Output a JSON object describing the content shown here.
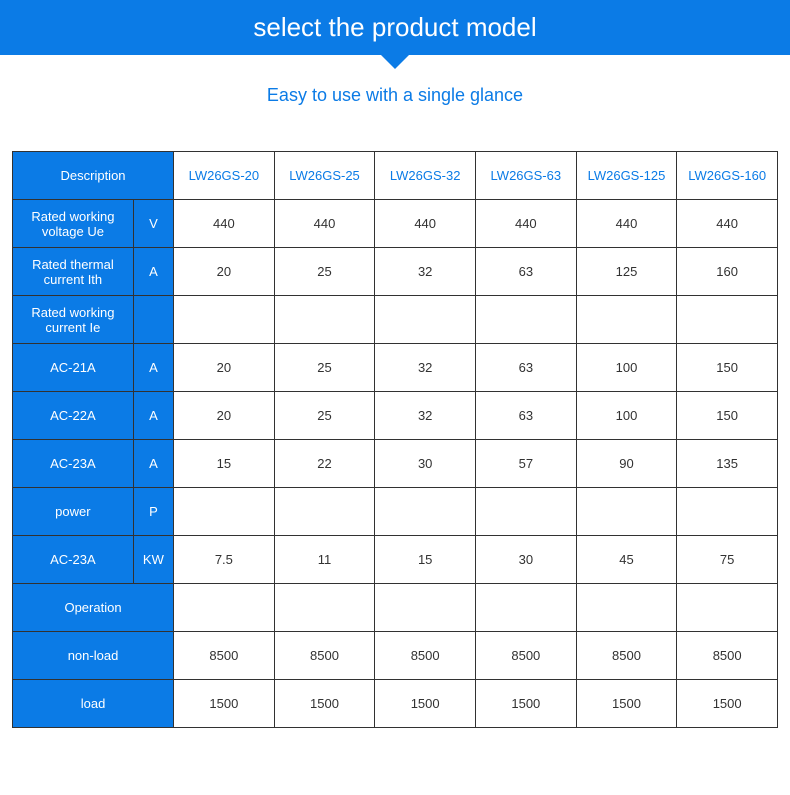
{
  "banner_title": "select the product model",
  "subtitle": "Easy to use with a single glance",
  "table": {
    "header_label": "Description",
    "models": [
      "LW26GS-20",
      "LW26GS-25",
      "LW26GS-32",
      "LW26GS-63",
      "LW26GS-125",
      "LW26GS-160"
    ],
    "rows": [
      {
        "label": "Rated working voltage Ue",
        "unit": "V",
        "values": [
          "440",
          "440",
          "440",
          "440",
          "440",
          "440"
        ]
      },
      {
        "label": "Rated thermal current Ith",
        "unit": "A",
        "values": [
          "20",
          "25",
          "32",
          "63",
          "125",
          "160"
        ]
      },
      {
        "label": "Rated working current Ie",
        "unit": "",
        "values": [
          "",
          "",
          "",
          "",
          "",
          ""
        ]
      },
      {
        "label": "AC-21A",
        "unit": "A",
        "values": [
          "20",
          "25",
          "32",
          "63",
          "100",
          "150"
        ]
      },
      {
        "label": "AC-22A",
        "unit": "A",
        "values": [
          "20",
          "25",
          "32",
          "63",
          "100",
          "150"
        ]
      },
      {
        "label": "AC-23A",
        "unit": "A",
        "values": [
          "15",
          "22",
          "30",
          "57",
          "90",
          "135"
        ]
      },
      {
        "label": "power",
        "unit": "P",
        "values": [
          "",
          "",
          "",
          "",
          "",
          ""
        ]
      },
      {
        "label": "AC-23A",
        "unit": "KW",
        "values": [
          "7.5",
          "11",
          "15",
          "30",
          "45",
          "75"
        ]
      },
      {
        "label": "Operation",
        "unit": "",
        "span": true,
        "values": [
          "",
          "",
          "",
          "",
          "",
          ""
        ]
      },
      {
        "label": "non-load",
        "unit": "",
        "span": true,
        "values": [
          "8500",
          "8500",
          "8500",
          "8500",
          "8500",
          "8500"
        ]
      },
      {
        "label": "load",
        "unit": "",
        "span": true,
        "values": [
          "1500",
          "1500",
          "1500",
          "1500",
          "1500",
          "1500"
        ]
      }
    ]
  },
  "colors": {
    "primary": "#0b7be6",
    "border": "#323232",
    "text": "#323232",
    "bg": "#ffffff"
  }
}
